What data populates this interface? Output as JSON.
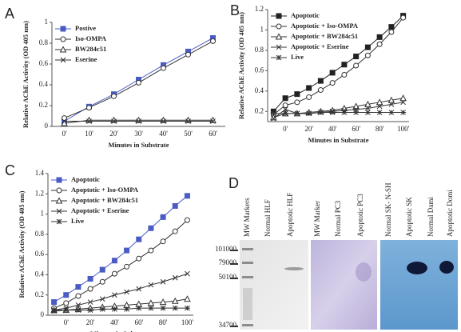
{
  "panel_labels": [
    "A",
    "B",
    "C",
    "D"
  ],
  "chart_data": [
    {
      "type": "line",
      "ylabel": "Relative AChE Activity (OD 405 nm)",
      "xlabel": "Minutes in Substrate",
      "categories": [
        "0'",
        "10'",
        "20'",
        "30'",
        "40'",
        "50'",
        "60'"
      ],
      "ylim": [
        0,
        1
      ],
      "yticks": [
        0,
        0.2,
        0.4,
        0.6,
        0.8,
        1
      ],
      "legend": "top-left",
      "series": [
        {
          "name": "Postive",
          "color": "#4a5cc4",
          "marker": "square",
          "values": [
            0.05,
            0.19,
            0.31,
            0.45,
            0.59,
            0.72,
            0.85
          ]
        },
        {
          "name": "Iso-OMPA",
          "color": "#333333",
          "marker": "circle",
          "values": [
            0.08,
            0.18,
            0.29,
            0.42,
            0.56,
            0.69,
            0.82
          ]
        },
        {
          "name": "BW284c51",
          "color": "#333333",
          "marker": "triangle",
          "values": [
            0.03,
            0.06,
            0.06,
            0.06,
            0.06,
            0.06,
            0.06
          ]
        },
        {
          "name": "Eserine",
          "color": "#333333",
          "marker": "cross",
          "values": [
            0.05,
            0.05,
            0.05,
            0.05,
            0.05,
            0.05,
            0.05
          ]
        }
      ]
    },
    {
      "type": "line",
      "ylabel": "Relative AChE Activity (OD 405 nm)",
      "xlabel": "Minutes in Substrate",
      "categories": [
        null,
        "0'",
        null,
        "20'",
        null,
        "40'",
        null,
        "60'",
        null,
        "80'",
        null,
        "100'"
      ],
      "ylim": [
        0.1,
        1.2
      ],
      "yticks": [
        0.2,
        0.4,
        0.6,
        0.8,
        1,
        1.2
      ],
      "legend": "top-left",
      "series": [
        {
          "name": "Apoptotic",
          "color": "#222222",
          "marker": "square",
          "values": [
            0.2,
            0.33,
            0.37,
            0.43,
            0.5,
            0.58,
            0.66,
            0.74,
            0.83,
            0.93,
            1.03,
            1.14
          ]
        },
        {
          "name": "Apoptotic + Iso-OMPA",
          "color": "#333333",
          "marker": "circle",
          "values": [
            0.17,
            0.26,
            0.29,
            0.34,
            0.41,
            0.48,
            0.56,
            0.65,
            0.75,
            0.86,
            0.98,
            1.12
          ]
        },
        {
          "name": "Apoptotic + BW284c51",
          "color": "#333333",
          "marker": "triangle",
          "values": [
            0.14,
            0.18,
            0.18,
            0.19,
            0.2,
            0.21,
            0.23,
            0.25,
            0.27,
            0.29,
            0.31,
            0.33
          ]
        },
        {
          "name": "Apoptotic + Eserine",
          "color": "#333333",
          "marker": "cross",
          "values": [
            0.13,
            0.22,
            0.18,
            0.18,
            0.19,
            0.2,
            0.21,
            0.22,
            0.23,
            0.25,
            0.27,
            0.29
          ]
        },
        {
          "name": "Live",
          "color": "#333333",
          "marker": "star",
          "values": [
            0.18,
            0.18,
            0.18,
            0.18,
            0.19,
            0.19,
            0.19,
            0.19,
            0.19,
            0.19,
            0.19,
            0.19
          ]
        }
      ]
    },
    {
      "type": "line",
      "ylabel": "Relative AChE Activity (OD 405 nm)",
      "xlabel": "Minutes in Substrate",
      "categories": [
        null,
        "0'",
        null,
        "20'",
        null,
        "40'",
        null,
        "60'",
        null,
        "80'",
        null,
        "100'"
      ],
      "ylim": [
        0,
        1.4
      ],
      "yticks": [
        0,
        0.2,
        0.4,
        0.6,
        0.8,
        1,
        1.2,
        1.4
      ],
      "legend": "top-left",
      "series": [
        {
          "name": "Apoptotic",
          "color": "#4a5cc4",
          "marker": "square",
          "values": [
            0.13,
            0.2,
            0.28,
            0.36,
            0.45,
            0.54,
            0.64,
            0.75,
            0.86,
            0.97,
            1.08,
            1.18
          ]
        },
        {
          "name": "Apoptotic + Iso-OMPA",
          "color": "#333333",
          "marker": "circle",
          "values": [
            0.07,
            0.12,
            0.19,
            0.26,
            0.33,
            0.41,
            0.48,
            0.56,
            0.64,
            0.73,
            0.83,
            0.94
          ]
        },
        {
          "name": "Apoptotic + BW284c51",
          "color": "#333333",
          "marker": "triangle",
          "values": [
            0.05,
            0.05,
            0.06,
            0.07,
            0.08,
            0.09,
            0.1,
            0.11,
            0.12,
            0.13,
            0.14,
            0.16
          ]
        },
        {
          "name": "Apoptotic + Eserine",
          "color": "#333333",
          "marker": "cross",
          "values": [
            0.05,
            0.07,
            0.1,
            0.13,
            0.16,
            0.2,
            0.23,
            0.26,
            0.3,
            0.33,
            0.37,
            0.41
          ]
        },
        {
          "name": "Live",
          "color": "#333333",
          "marker": "star",
          "values": [
            0.04,
            0.05,
            0.05,
            0.05,
            0.06,
            0.06,
            0.06,
            0.07,
            0.07,
            0.07,
            0.07,
            0.07
          ]
        }
      ]
    }
  ],
  "blot": {
    "lanes": [
      "MW Markers",
      "Normal HLF",
      "Apoptotic HLF",
      "MW Marker",
      "Normal PC3",
      "Apoptotic PC3",
      "Normal SK- N-SH",
      "Apoptotic SK",
      "Normal Dami",
      "Apoptotic Domi"
    ],
    "markers": [
      "101000",
      "79000",
      "50100",
      "34700"
    ]
  }
}
